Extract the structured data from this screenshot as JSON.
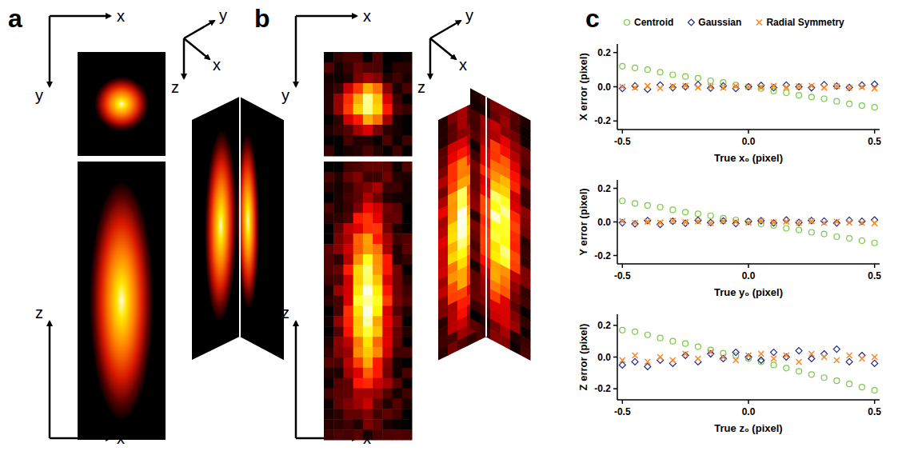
{
  "panels": [
    {
      "label": "a",
      "top_axes": [
        "x",
        "y"
      ],
      "bottom_axes": [
        "z",
        "x"
      ],
      "view_axes": [
        "y",
        "x",
        "z"
      ]
    },
    {
      "label": "b",
      "top_axes": [
        "x",
        "y"
      ],
      "bottom_axes": [
        "z",
        "x"
      ],
      "view_axes": [
        "y",
        "x",
        "z"
      ]
    },
    {
      "label": "c"
    }
  ],
  "chart_data": [
    {
      "type": "scatter",
      "y_label": "X error (pixel)",
      "x_label": "True x₀ (pixel)",
      "legend": "top",
      "x": [
        -0.5,
        -0.45,
        -0.4,
        -0.35,
        -0.3,
        -0.25,
        -0.2,
        -0.15,
        -0.1,
        -0.05,
        0,
        0.05,
        0.1,
        0.15,
        0.2,
        0.25,
        0.3,
        0.35,
        0.4,
        0.45,
        0.5
      ],
      "series": [
        {
          "name": "Centroid",
          "color": "#7ac943",
          "marker": "circle",
          "values": [
            0.12,
            0.11,
            0.1,
            0.085,
            0.07,
            0.06,
            0.05,
            0.035,
            0.025,
            0.01,
            0.0,
            -0.01,
            -0.025,
            -0.035,
            -0.05,
            -0.06,
            -0.07,
            -0.085,
            -0.1,
            -0.11,
            -0.12
          ]
        },
        {
          "name": "Gaussian",
          "color": "#1f2a8c",
          "marker": "diamond",
          "values": [
            -0.01,
            0.005,
            -0.015,
            0.01,
            -0.005,
            0.0,
            0.012,
            -0.008,
            0.005,
            -0.01,
            0.0,
            0.008,
            -0.005,
            0.01,
            0.0,
            -0.006,
            0.012,
            0.004,
            -0.004,
            0.01,
            0.015
          ]
        },
        {
          "name": "Radial Symmetry",
          "color": "#ff8a1f",
          "marker": "x",
          "values": [
            0.0,
            -0.005,
            0.005,
            -0.008,
            0.003,
            0.006,
            -0.004,
            0.002,
            -0.006,
            0.004,
            0.0,
            -0.003,
            0.005,
            -0.004,
            0.002,
            0.006,
            -0.005,
            0.003,
            -0.006,
            -0.002,
            -0.01
          ]
        }
      ],
      "xlim": [
        -0.52,
        0.52
      ],
      "ylim": [
        -0.25,
        0.25
      ],
      "xticks": [
        -0.5,
        {
          "value": 0,
          "label": "0.0"
        },
        0.5
      ],
      "yticks": [
        -0.2,
        {
          "value": 0,
          "label": "0.0"
        },
        0.2
      ]
    },
    {
      "type": "scatter",
      "y_label": "Y error (pixel)",
      "x_label": "True y₀ (pixel)",
      "x": [
        -0.5,
        -0.45,
        -0.4,
        -0.35,
        -0.3,
        -0.25,
        -0.2,
        -0.15,
        -0.1,
        -0.05,
        0,
        0.05,
        0.1,
        0.15,
        0.2,
        0.25,
        0.3,
        0.35,
        0.4,
        0.45,
        0.5
      ],
      "series": [
        {
          "color": "#7ac943",
          "marker": "circle",
          "values": [
            0.125,
            0.11,
            0.098,
            0.088,
            0.072,
            0.058,
            0.048,
            0.037,
            0.022,
            0.012,
            0.002,
            -0.012,
            -0.022,
            -0.038,
            -0.048,
            -0.062,
            -0.072,
            -0.088,
            -0.098,
            -0.112,
            -0.125
          ]
        },
        {
          "color": "#1f2a8c",
          "marker": "diamond",
          "values": [
            -0.005,
            -0.012,
            0.008,
            -0.015,
            0.004,
            -0.008,
            0.01,
            -0.004,
            0.006,
            -0.01,
            0.003,
            0.007,
            -0.006,
            0.012,
            -0.003,
            0.008,
            0.005,
            -0.007,
            0.01,
            0.004,
            0.012
          ]
        },
        {
          "color": "#ff8a1f",
          "marker": "x",
          "values": [
            0.004,
            -0.006,
            0.002,
            -0.004,
            0.006,
            -0.002,
            0.003,
            -0.007,
            0.005,
            0.0,
            -0.004,
            0.006,
            -0.003,
            0.002,
            -0.005,
            0.004,
            -0.006,
            0.001,
            -0.004,
            -0.006,
            -0.008
          ]
        }
      ],
      "xlim": [
        -0.52,
        0.52
      ],
      "ylim": [
        -0.25,
        0.25
      ],
      "xticks": [
        -0.5,
        {
          "value": 0,
          "label": "0.0"
        },
        0.5
      ],
      "yticks": [
        -0.2,
        {
          "value": 0,
          "label": "0.0"
        },
        0.2
      ]
    },
    {
      "type": "scatter",
      "y_label": "Z error (pixel)",
      "x_label": "True z₀ (pixel)",
      "x": [
        -0.5,
        -0.45,
        -0.4,
        -0.35,
        -0.3,
        -0.25,
        -0.2,
        -0.15,
        -0.1,
        -0.05,
        0,
        0.05,
        0.1,
        0.15,
        0.2,
        0.25,
        0.3,
        0.35,
        0.4,
        0.45,
        0.5
      ],
      "series": [
        {
          "color": "#7ac943",
          "marker": "circle",
          "values": [
            0.17,
            0.16,
            0.14,
            0.12,
            0.1,
            0.085,
            0.065,
            0.045,
            0.025,
            0.01,
            -0.01,
            -0.03,
            -0.05,
            -0.07,
            -0.09,
            -0.11,
            -0.13,
            -0.15,
            -0.17,
            -0.19,
            -0.21
          ]
        },
        {
          "color": "#1f2a8c",
          "marker": "diamond",
          "values": [
            -0.05,
            -0.03,
            -0.06,
            -0.02,
            -0.04,
            0.01,
            -0.03,
            0.02,
            -0.01,
            0.03,
            0.0,
            -0.02,
            0.03,
            0.0,
            0.04,
            -0.01,
            0.02,
            0.05,
            -0.03,
            0.01,
            -0.04
          ]
        },
        {
          "color": "#ff8a1f",
          "marker": "x",
          "values": [
            -0.02,
            0.01,
            -0.03,
            0.0,
            -0.02,
            0.02,
            -0.01,
            0.03,
            0.0,
            -0.02,
            0.01,
            0.02,
            -0.01,
            0.01,
            -0.03,
            0.02,
            0.0,
            -0.02,
            0.01,
            -0.01,
            0.0
          ]
        }
      ],
      "xlim": [
        -0.52,
        0.52
      ],
      "ylim": [
        -0.27,
        0.27
      ],
      "xticks": [
        -0.5,
        {
          "value": 0,
          "label": "0.0"
        },
        0.5
      ],
      "yticks": [
        -0.2,
        {
          "value": 0,
          "label": "0.0"
        },
        0.2
      ]
    }
  ]
}
